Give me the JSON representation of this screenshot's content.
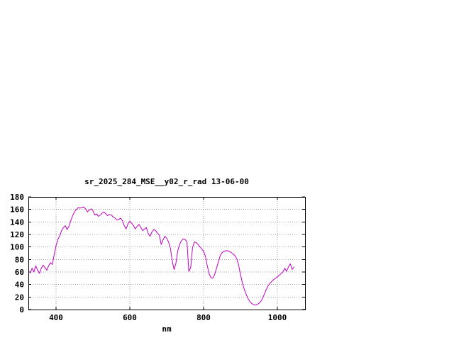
{
  "page": {
    "background_color": "#ffffff"
  },
  "chart_data": {
    "type": "line",
    "title": "sr_2025_284_MSE__y02_r_rad 13-06-00",
    "xlabel": "nm",
    "ylabel": "",
    "xlim": [
      325,
      1075
    ],
    "ylim": [
      0,
      180
    ],
    "xticks": [
      400,
      600,
      800,
      1000
    ],
    "yticks": [
      0,
      20,
      40,
      60,
      80,
      100,
      120,
      140,
      160,
      180
    ],
    "grid": true,
    "grid_color": "#a0a0a0",
    "axis_color": "#000000",
    "legend": "none",
    "series": [
      {
        "name": "sr_2025_284_MSE__y02_r_rad",
        "color": "#c000c0",
        "x": [
          330,
          335,
          340,
          345,
          350,
          355,
          360,
          365,
          370,
          375,
          380,
          385,
          390,
          395,
          400,
          405,
          410,
          415,
          420,
          425,
          430,
          435,
          440,
          445,
          450,
          455,
          460,
          465,
          470,
          475,
          480,
          485,
          490,
          495,
          500,
          505,
          510,
          515,
          520,
          525,
          530,
          535,
          540,
          545,
          550,
          555,
          560,
          565,
          570,
          575,
          580,
          585,
          590,
          595,
          600,
          605,
          610,
          615,
          620,
          625,
          630,
          635,
          640,
          645,
          650,
          655,
          660,
          665,
          670,
          675,
          680,
          685,
          690,
          695,
          700,
          705,
          710,
          715,
          720,
          725,
          730,
          735,
          740,
          745,
          750,
          755,
          760,
          765,
          770,
          775,
          780,
          785,
          790,
          795,
          800,
          805,
          810,
          815,
          820,
          825,
          830,
          835,
          840,
          845,
          850,
          855,
          860,
          865,
          870,
          875,
          880,
          885,
          890,
          895,
          900,
          905,
          910,
          915,
          920,
          925,
          930,
          935,
          940,
          945,
          950,
          955,
          960,
          965,
          970,
          975,
          980,
          985,
          990,
          995,
          1000,
          1005,
          1010,
          1015,
          1020,
          1025,
          1030,
          1035,
          1040,
          1045
        ],
        "y": [
          58,
          66,
          60,
          70,
          63,
          58,
          66,
          71,
          67,
          63,
          70,
          75,
          72,
          88,
          102,
          112,
          118,
          126,
          131,
          134,
          128,
          133,
          142,
          150,
          156,
          160,
          163,
          162,
          163,
          164,
          161,
          156,
          159,
          161,
          158,
          151,
          153,
          149,
          151,
          154,
          156,
          153,
          150,
          152,
          151,
          148,
          146,
          143,
          144,
          146,
          142,
          134,
          129,
          137,
          141,
          138,
          134,
          129,
          133,
          136,
          131,
          126,
          129,
          131,
          121,
          117,
          124,
          128,
          126,
          122,
          119,
          104,
          111,
          117,
          114,
          108,
          98,
          78,
          64,
          74,
          94,
          104,
          110,
          113,
          112,
          108,
          61,
          67,
          99,
          108,
          107,
          104,
          100,
          97,
          93,
          85,
          70,
          57,
          51,
          50,
          56,
          66,
          76,
          86,
          91,
          93,
          94,
          94,
          93,
          91,
          89,
          86,
          81,
          71,
          56,
          43,
          33,
          25,
          18,
          13,
          10,
          8,
          7,
          8,
          10,
          13,
          18,
          25,
          32,
          38,
          42,
          45,
          48,
          50,
          52,
          55,
          57,
          60,
          66,
          61,
          68,
          73,
          64,
          68
        ]
      }
    ]
  }
}
